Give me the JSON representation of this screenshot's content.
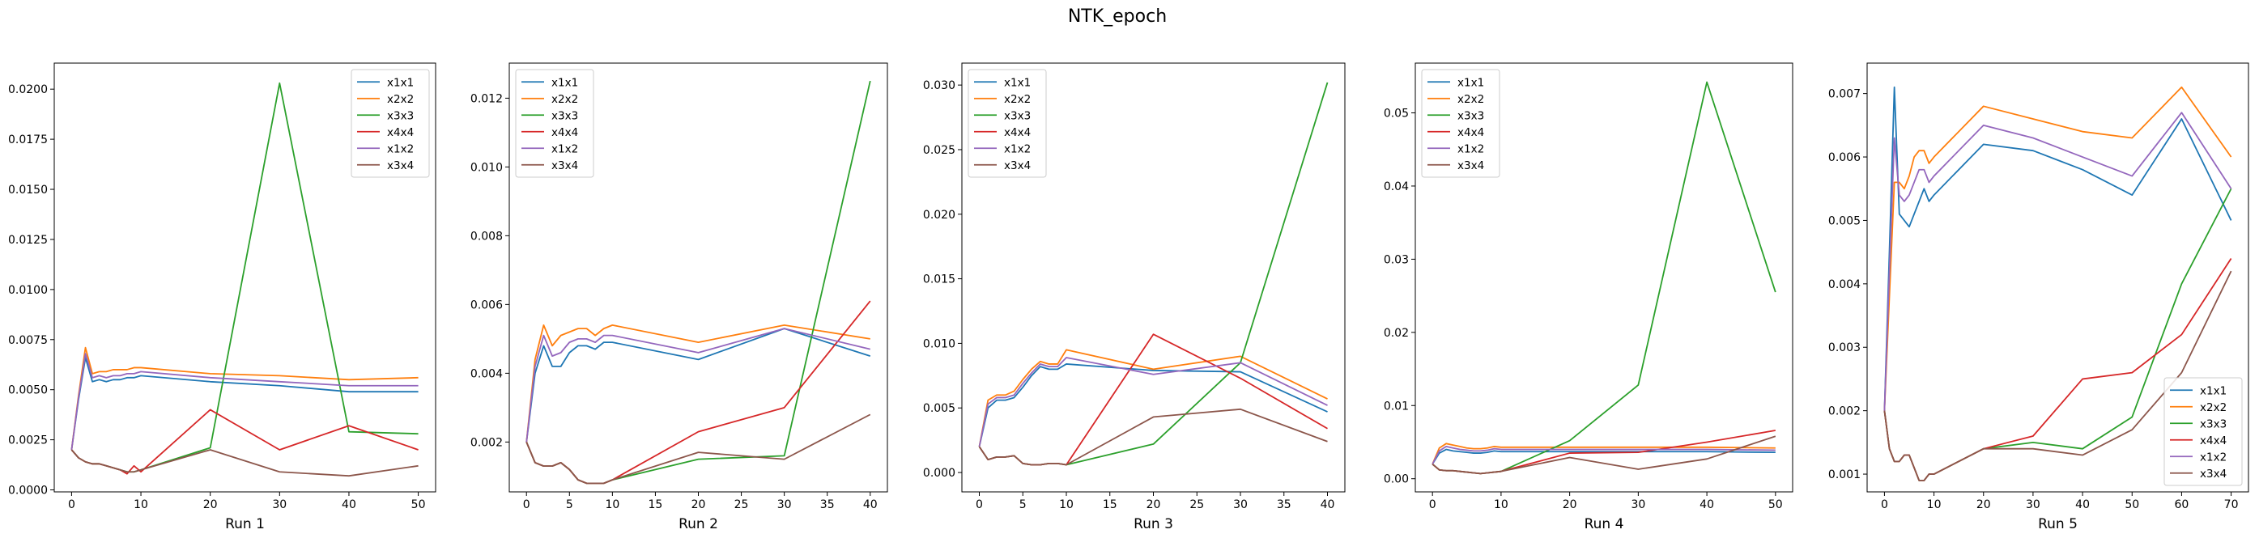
{
  "figure": {
    "title": "NTK_epoch"
  },
  "colors": {
    "x1x1": "#1f77b4",
    "x2x2": "#ff7f0e",
    "x3x3": "#2ca02c",
    "x4x4": "#d62728",
    "x1x2": "#9467bd",
    "x3x4": "#8c564b"
  },
  "chart_data": [
    {
      "type": "line",
      "xlabel": "Run 1",
      "legend_loc": "upper right",
      "xlim": [
        -2.5,
        52.5
      ],
      "ylim": [
        -0.0001,
        0.0213
      ],
      "xticks": [
        0,
        10,
        20,
        30,
        40,
        50
      ],
      "xtick_labels": [
        "0",
        "10",
        "20",
        "30",
        "40",
        "50"
      ],
      "yticks": [
        0.0,
        0.0025,
        0.005,
        0.0075,
        0.01,
        0.0125,
        0.015,
        0.0175,
        0.02
      ],
      "ytick_labels": [
        "0.0000",
        "0.0025",
        "0.0050",
        "0.0075",
        "0.0100",
        "0.0125",
        "0.0150",
        "0.0175",
        "0.0200"
      ],
      "x": [
        0,
        1,
        2,
        3,
        4,
        5,
        6,
        7,
        8,
        9,
        10,
        20,
        30,
        40,
        50
      ],
      "series": [
        {
          "name": "x1x1",
          "values": [
            0.002,
            0.0045,
            0.0066,
            0.0054,
            0.0055,
            0.0054,
            0.0055,
            0.0055,
            0.0056,
            0.0056,
            0.0057,
            0.0054,
            0.0052,
            0.0049,
            0.0049
          ]
        },
        {
          "name": "x2x2",
          "values": [
            0.002,
            0.0047,
            0.0071,
            0.0058,
            0.0059,
            0.0059,
            0.006,
            0.006,
            0.006,
            0.0061,
            0.0061,
            0.0058,
            0.0057,
            0.0055,
            0.0056
          ]
        },
        {
          "name": "x3x3",
          "values": [
            0.002,
            0.0016,
            0.0014,
            0.0013,
            0.0013,
            0.0012,
            0.0011,
            0.001,
            0.0009,
            0.0009,
            0.001,
            0.0021,
            0.0203,
            0.0029,
            0.0028
          ]
        },
        {
          "name": "x4x4",
          "values": [
            0.002,
            0.0016,
            0.0014,
            0.0013,
            0.0013,
            0.0012,
            0.0011,
            0.001,
            0.0008,
            0.0012,
            0.0009,
            0.004,
            0.002,
            0.0032,
            0.002
          ]
        },
        {
          "name": "x1x2",
          "values": [
            0.002,
            0.0046,
            0.0068,
            0.0056,
            0.0057,
            0.0056,
            0.0057,
            0.0057,
            0.0058,
            0.0058,
            0.0059,
            0.0056,
            0.0054,
            0.0052,
            0.0052
          ]
        },
        {
          "name": "x3x4",
          "values": [
            0.002,
            0.0016,
            0.0014,
            0.0013,
            0.0013,
            0.0012,
            0.0011,
            0.001,
            0.0009,
            0.0009,
            0.001,
            0.002,
            0.0009,
            0.0007,
            0.0012
          ]
        }
      ]
    },
    {
      "type": "line",
      "xlabel": "Run 2",
      "legend_loc": "upper left",
      "xlim": [
        -2.0,
        42.0
      ],
      "ylim": [
        0.00055,
        0.01302
      ],
      "xticks": [
        0,
        5,
        10,
        15,
        20,
        25,
        30,
        35,
        40
      ],
      "xtick_labels": [
        "0",
        "5",
        "10",
        "15",
        "20",
        "25",
        "30",
        "35",
        "40"
      ],
      "yticks": [
        0.002,
        0.004,
        0.006,
        0.008,
        0.01,
        0.012
      ],
      "ytick_labels": [
        "0.002",
        "0.004",
        "0.006",
        "0.008",
        "0.010",
        "0.012"
      ],
      "x": [
        0,
        1,
        2,
        3,
        4,
        5,
        6,
        7,
        8,
        9,
        10,
        20,
        30,
        40
      ],
      "series": [
        {
          "name": "x1x1",
          "values": [
            0.002,
            0.004,
            0.0048,
            0.0042,
            0.0042,
            0.0046,
            0.0048,
            0.0048,
            0.0047,
            0.0049,
            0.0049,
            0.0044,
            0.0053,
            0.0045
          ]
        },
        {
          "name": "x2x2",
          "values": [
            0.002,
            0.0044,
            0.0054,
            0.0048,
            0.0051,
            0.0052,
            0.0053,
            0.0053,
            0.0051,
            0.0053,
            0.0054,
            0.0049,
            0.0054,
            0.005
          ]
        },
        {
          "name": "x3x3",
          "values": [
            0.002,
            0.0014,
            0.0013,
            0.0013,
            0.0014,
            0.0012,
            0.0009,
            0.0008,
            0.0008,
            0.0008,
            0.0009,
            0.0015,
            0.0016,
            0.0125
          ]
        },
        {
          "name": "x4x4",
          "values": [
            0.002,
            0.0014,
            0.0013,
            0.0013,
            0.0014,
            0.0012,
            0.0009,
            0.0008,
            0.0008,
            0.0008,
            0.0009,
            0.0023,
            0.003,
            0.0061
          ]
        },
        {
          "name": "x1x2",
          "values": [
            0.002,
            0.0042,
            0.0051,
            0.0045,
            0.0046,
            0.0049,
            0.005,
            0.005,
            0.0049,
            0.0051,
            0.0051,
            0.0046,
            0.0053,
            0.0047
          ]
        },
        {
          "name": "x3x4",
          "values": [
            0.002,
            0.0014,
            0.0013,
            0.0013,
            0.0014,
            0.0012,
            0.0009,
            0.0008,
            0.0008,
            0.0008,
            0.0009,
            0.0017,
            0.0015,
            0.0028
          ]
        }
      ]
    },
    {
      "type": "line",
      "xlabel": "Run 3",
      "legend_loc": "upper left",
      "xlim": [
        -2.0,
        42.0
      ],
      "ylim": [
        -0.0015,
        0.0317
      ],
      "xticks": [
        0,
        5,
        10,
        15,
        20,
        25,
        30,
        35,
        40
      ],
      "xtick_labels": [
        "0",
        "5",
        "10",
        "15",
        "20",
        "25",
        "30",
        "35",
        "40"
      ],
      "yticks": [
        0.0,
        0.005,
        0.01,
        0.015,
        0.02,
        0.025,
        0.03
      ],
      "ytick_labels": [
        "0.000",
        "0.005",
        "0.010",
        "0.015",
        "0.020",
        "0.025",
        "0.030"
      ],
      "x": [
        0,
        1,
        2,
        3,
        4,
        5,
        6,
        7,
        8,
        9,
        10,
        20,
        30,
        40
      ],
      "series": [
        {
          "name": "x1x1",
          "values": [
            0.002,
            0.005,
            0.0056,
            0.0056,
            0.0058,
            0.0066,
            0.0075,
            0.0082,
            0.008,
            0.008,
            0.0084,
            0.0079,
            0.0078,
            0.0047
          ]
        },
        {
          "name": "x2x2",
          "values": [
            0.002,
            0.0056,
            0.006,
            0.006,
            0.0063,
            0.0072,
            0.008,
            0.0086,
            0.0084,
            0.0084,
            0.0095,
            0.008,
            0.009,
            0.0057
          ]
        },
        {
          "name": "x3x3",
          "values": [
            0.002,
            0.001,
            0.0012,
            0.0012,
            0.0013,
            0.0007,
            0.0006,
            0.0006,
            0.0007,
            0.0007,
            0.0006,
            0.0022,
            0.0085,
            0.0302
          ]
        },
        {
          "name": "x4x4",
          "values": [
            0.002,
            0.001,
            0.0012,
            0.0012,
            0.0013,
            0.0007,
            0.0006,
            0.0006,
            0.0007,
            0.0007,
            0.0006,
            0.0107,
            0.0073,
            0.0034
          ]
        },
        {
          "name": "x1x2",
          "values": [
            0.002,
            0.0053,
            0.0058,
            0.0058,
            0.006,
            0.0069,
            0.0077,
            0.0084,
            0.0082,
            0.0082,
            0.0089,
            0.0076,
            0.0085,
            0.0052
          ]
        },
        {
          "name": "x3x4",
          "values": [
            0.002,
            0.001,
            0.0012,
            0.0012,
            0.0013,
            0.0007,
            0.0006,
            0.0006,
            0.0007,
            0.0007,
            0.0006,
            0.0043,
            0.0049,
            0.0024
          ]
        }
      ]
    },
    {
      "type": "line",
      "xlabel": "Run 4",
      "legend_loc": "upper left",
      "xlim": [
        -2.5,
        52.5
      ],
      "ylim": [
        -0.0018,
        0.0568
      ],
      "xticks": [
        0,
        10,
        20,
        30,
        40,
        50
      ],
      "xtick_labels": [
        "0",
        "10",
        "20",
        "30",
        "40",
        "50"
      ],
      "yticks": [
        0.0,
        0.01,
        0.02,
        0.03,
        0.04,
        0.05
      ],
      "ytick_labels": [
        "0.00",
        "0.01",
        "0.02",
        "0.03",
        "0.04",
        "0.05"
      ],
      "x": [
        0,
        1,
        2,
        3,
        4,
        5,
        6,
        7,
        8,
        9,
        10,
        20,
        30,
        40,
        50
      ],
      "series": [
        {
          "name": "x1x1",
          "values": [
            0.002,
            0.0035,
            0.004,
            0.0038,
            0.0037,
            0.0036,
            0.0035,
            0.0035,
            0.0036,
            0.0038,
            0.0037,
            0.0037,
            0.0037,
            0.0037,
            0.0036
          ]
        },
        {
          "name": "x2x2",
          "values": [
            0.002,
            0.0042,
            0.0048,
            0.0046,
            0.0044,
            0.0042,
            0.0041,
            0.0041,
            0.0042,
            0.0044,
            0.0043,
            0.0043,
            0.0043,
            0.0043,
            0.0042
          ]
        },
        {
          "name": "x3x3",
          "values": [
            0.002,
            0.0012,
            0.0011,
            0.0011,
            0.001,
            0.0009,
            0.0008,
            0.0007,
            0.0008,
            0.0009,
            0.001,
            0.0052,
            0.0128,
            0.0542,
            0.0255
          ]
        },
        {
          "name": "x4x4",
          "values": [
            0.002,
            0.0012,
            0.0011,
            0.0011,
            0.001,
            0.0009,
            0.0008,
            0.0007,
            0.0008,
            0.0009,
            0.001,
            0.0035,
            0.0036,
            0.005,
            0.0066
          ]
        },
        {
          "name": "x1x2",
          "values": [
            0.002,
            0.0038,
            0.0044,
            0.0042,
            0.004,
            0.0039,
            0.0038,
            0.0038,
            0.0039,
            0.0041,
            0.004,
            0.004,
            0.004,
            0.004,
            0.0039
          ]
        },
        {
          "name": "x3x4",
          "values": [
            0.002,
            0.0012,
            0.0011,
            0.0011,
            0.001,
            0.0009,
            0.0008,
            0.0007,
            0.0008,
            0.0009,
            0.001,
            0.0029,
            0.0013,
            0.0027,
            0.0058
          ]
        }
      ]
    },
    {
      "type": "line",
      "xlabel": "Run 5",
      "legend_loc": "lower right",
      "xlim": [
        -3.5,
        73.5
      ],
      "ylim": [
        0.00072,
        0.00748
      ],
      "xticks": [
        0,
        10,
        20,
        30,
        40,
        50,
        60,
        70
      ],
      "xtick_labels": [
        "0",
        "10",
        "20",
        "30",
        "40",
        "50",
        "60",
        "70"
      ],
      "yticks": [
        0.001,
        0.002,
        0.003,
        0.004,
        0.005,
        0.006,
        0.007
      ],
      "ytick_labels": [
        "0.001",
        "0.002",
        "0.003",
        "0.004",
        "0.005",
        "0.006",
        "0.007"
      ],
      "x": [
        0,
        1,
        2,
        3,
        4,
        5,
        6,
        7,
        8,
        9,
        10,
        20,
        30,
        40,
        50,
        60,
        70
      ],
      "series": [
        {
          "name": "x1x1",
          "values": [
            0.002,
            0.0045,
            0.0071,
            0.0051,
            0.005,
            0.0049,
            0.0051,
            0.0053,
            0.0055,
            0.0053,
            0.0054,
            0.0062,
            0.0061,
            0.0058,
            0.0054,
            0.0066,
            0.005
          ]
        },
        {
          "name": "x2x2",
          "values": [
            0.002,
            0.0038,
            0.0056,
            0.0056,
            0.0055,
            0.0057,
            0.006,
            0.0061,
            0.0061,
            0.0059,
            0.006,
            0.0068,
            0.0066,
            0.0064,
            0.0063,
            0.0071,
            0.006
          ]
        },
        {
          "name": "x3x3",
          "values": [
            0.002,
            0.0014,
            0.0012,
            0.0012,
            0.0013,
            0.0013,
            0.0011,
            0.0009,
            0.0009,
            0.001,
            0.001,
            0.0014,
            0.0015,
            0.0014,
            0.0019,
            0.004,
            0.0055
          ]
        },
        {
          "name": "x4x4",
          "values": [
            0.002,
            0.0014,
            0.0012,
            0.0012,
            0.0013,
            0.0013,
            0.0011,
            0.0009,
            0.0009,
            0.001,
            0.001,
            0.0014,
            0.0016,
            0.0025,
            0.0026,
            0.0032,
            0.0044
          ]
        },
        {
          "name": "x1x2",
          "values": [
            0.002,
            0.0042,
            0.0063,
            0.0054,
            0.0053,
            0.0054,
            0.0056,
            0.0058,
            0.0058,
            0.0056,
            0.0057,
            0.0065,
            0.0063,
            0.006,
            0.0057,
            0.0067,
            0.0055
          ]
        },
        {
          "name": "x3x4",
          "values": [
            0.002,
            0.0014,
            0.0012,
            0.0012,
            0.0013,
            0.0013,
            0.0011,
            0.0009,
            0.0009,
            0.001,
            0.001,
            0.0014,
            0.0014,
            0.0013,
            0.0017,
            0.0026,
            0.0042
          ]
        }
      ]
    }
  ]
}
